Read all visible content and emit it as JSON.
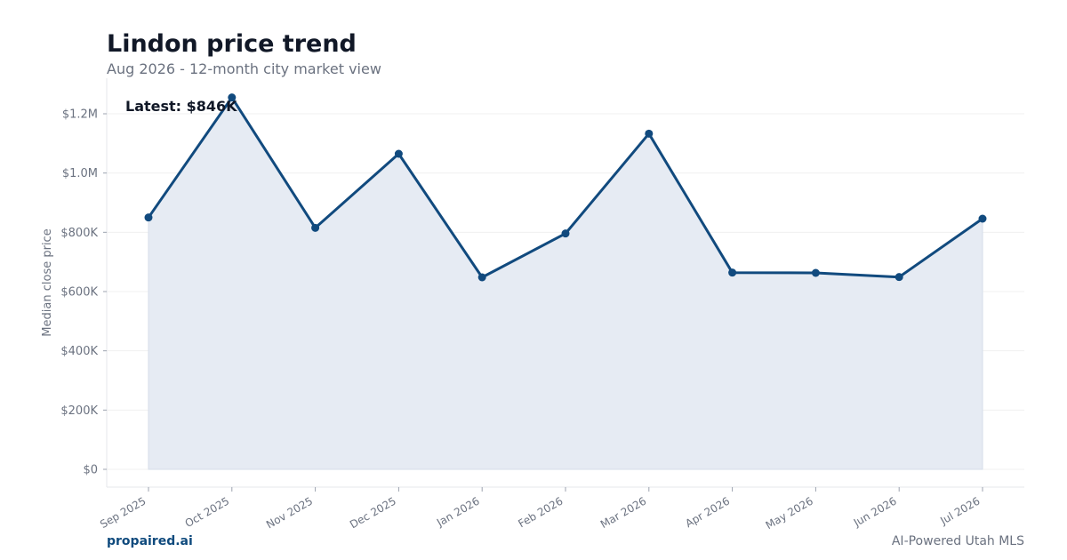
{
  "header": {
    "title": "Lindon price trend",
    "subtitle": "Aug 2026 - 12-month city market view"
  },
  "footer": {
    "brand": "propaired.ai",
    "tagline": "AI-Powered Utah MLS"
  },
  "colors": {
    "line": "#114a7e",
    "fill": "#e6ebf3",
    "grid": "#f0f0f0",
    "axis": "#e5e7eb"
  },
  "chart_data": {
    "type": "area",
    "categories": [
      "Sep 2025",
      "Oct 2025",
      "Nov 2025",
      "Dec 2025",
      "Jan 2026",
      "Feb 2026",
      "Mar 2026",
      "Apr 2026",
      "May 2026",
      "Jun 2026",
      "Jul 2026"
    ],
    "series": [
      {
        "values": [
          850000,
          1255000,
          815000,
          1065000,
          648000,
          796000,
          1133000,
          664000,
          663000,
          649000,
          846000
        ]
      }
    ],
    "ylabel": "Median close price",
    "xlabel": "",
    "ylim": [
      -60000,
      1320000
    ],
    "yticks": [
      0,
      200000,
      400000,
      600000,
      800000,
      1000000,
      1200000
    ],
    "ytick_labels": [
      "$0",
      "$200K",
      "$400K",
      "$600K",
      "$800K",
      "$1.0M",
      "$1.2M"
    ],
    "annotation": "Latest: $846K",
    "grid": true,
    "legend": "none"
  }
}
